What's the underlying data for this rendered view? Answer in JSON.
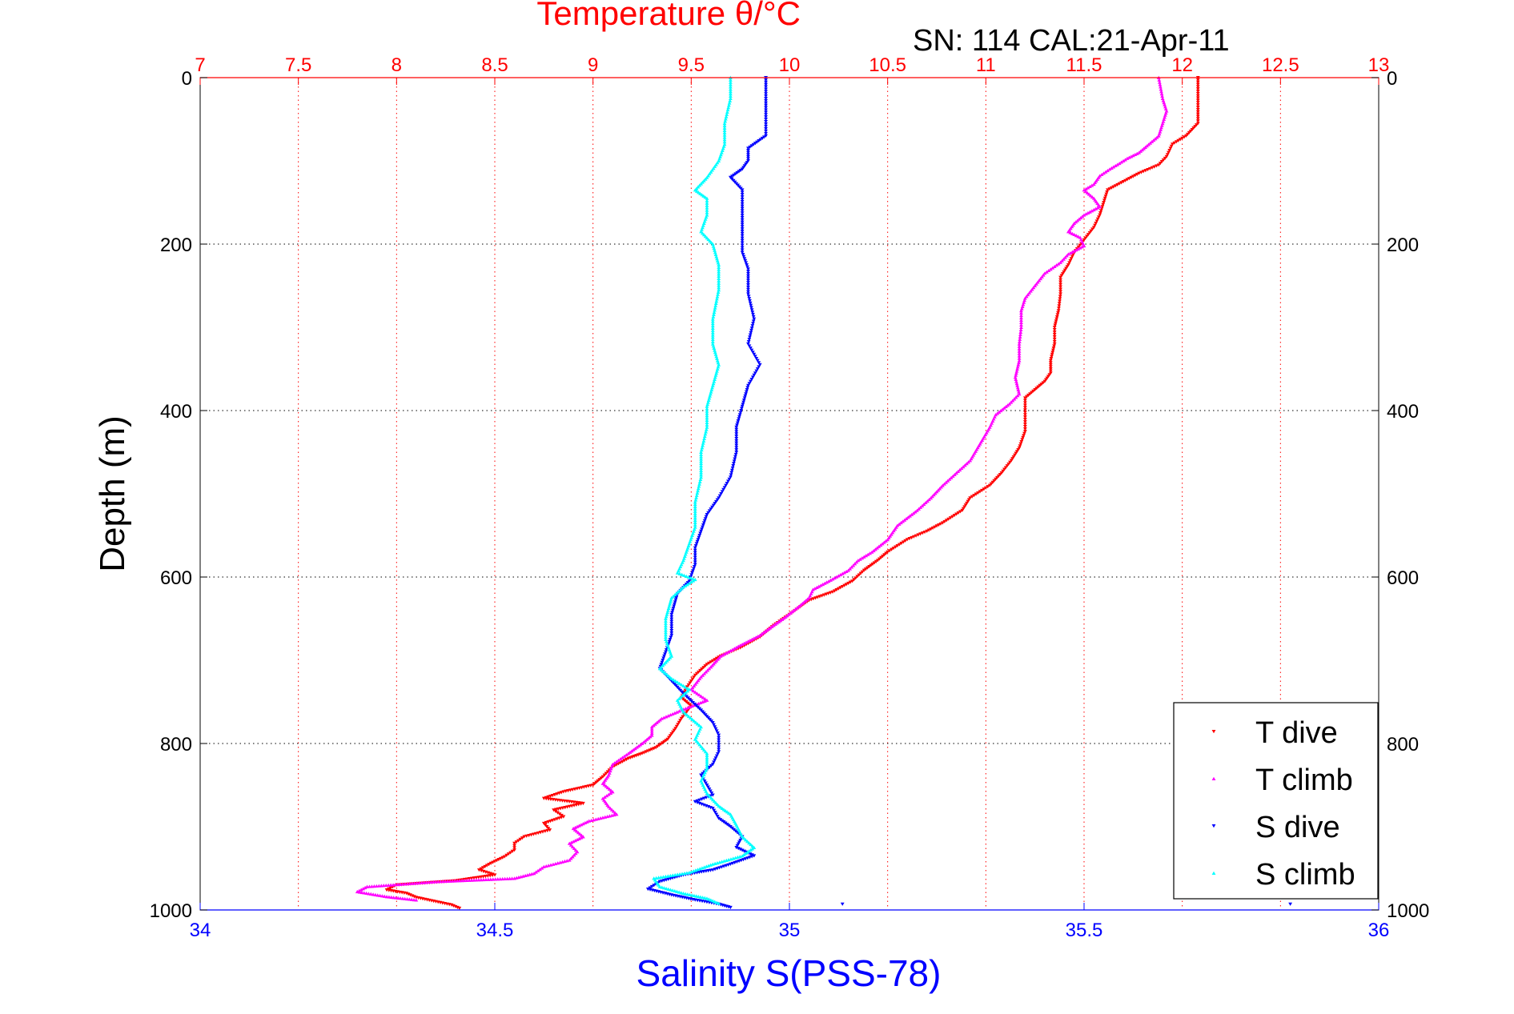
{
  "chart_data": {
    "type": "scatter",
    "title_top": "Temperature θ/°C",
    "subtitle": "SN: 114  CAL:21-Apr-11",
    "xlabel_bottom": "Salinity S(PSS-78)",
    "ylabel": "Depth (m)",
    "ylim": [
      0,
      1000
    ],
    "y_reversed": true,
    "y_ticks": [
      "0",
      "200",
      "400",
      "600",
      "800",
      "1000"
    ],
    "x_top": {
      "range": [
        7,
        13
      ],
      "ticks": [
        "7",
        "7.5",
        "8",
        "8.5",
        "9",
        "9.5",
        "10",
        "10.5",
        "11",
        "11.5",
        "12",
        "12.5",
        "13"
      ],
      "color": "#ff0000"
    },
    "x_bottom": {
      "range": [
        34,
        36
      ],
      "ticks": [
        "34",
        "34.5",
        "35",
        "35.5",
        "36"
      ],
      "color": "#0000ff"
    },
    "grid": true,
    "legend_position": "bottom-right",
    "series": [
      {
        "name": "T dive",
        "axis": "top",
        "color": "#ff0000",
        "points": [
          [
            12.08,
            0
          ],
          [
            12.08,
            30
          ],
          [
            12.08,
            55
          ],
          [
            12.02,
            70
          ],
          [
            11.95,
            80
          ],
          [
            11.92,
            95
          ],
          [
            11.88,
            105
          ],
          [
            11.78,
            115
          ],
          [
            11.7,
            125
          ],
          [
            11.62,
            135
          ],
          [
            11.6,
            150
          ],
          [
            11.58,
            165
          ],
          [
            11.55,
            180
          ],
          [
            11.5,
            195
          ],
          [
            11.45,
            210
          ],
          [
            11.42,
            225
          ],
          [
            11.38,
            240
          ],
          [
            11.38,
            260
          ],
          [
            11.37,
            280
          ],
          [
            11.35,
            300
          ],
          [
            11.35,
            320
          ],
          [
            11.33,
            340
          ],
          [
            11.33,
            355
          ],
          [
            11.3,
            365
          ],
          [
            11.25,
            375
          ],
          [
            11.2,
            385
          ],
          [
            11.2,
            405
          ],
          [
            11.2,
            425
          ],
          [
            11.17,
            445
          ],
          [
            11.13,
            460
          ],
          [
            11.08,
            475
          ],
          [
            11.02,
            490
          ],
          [
            10.92,
            505
          ],
          [
            10.88,
            520
          ],
          [
            10.78,
            535
          ],
          [
            10.7,
            545
          ],
          [
            10.6,
            555
          ],
          [
            10.5,
            570
          ],
          [
            10.45,
            580
          ],
          [
            10.38,
            592
          ],
          [
            10.32,
            605
          ],
          [
            10.22,
            618
          ],
          [
            10.1,
            628
          ],
          [
            10.0,
            645
          ],
          [
            9.92,
            658
          ],
          [
            9.85,
            672
          ],
          [
            9.75,
            685
          ],
          [
            9.65,
            695
          ],
          [
            9.58,
            705
          ],
          [
            9.52,
            718
          ],
          [
            9.48,
            732
          ],
          [
            9.45,
            745
          ],
          [
            9.5,
            755
          ],
          [
            9.45,
            770
          ],
          [
            9.42,
            782
          ],
          [
            9.38,
            795
          ],
          [
            9.32,
            805
          ],
          [
            9.25,
            812
          ],
          [
            9.18,
            818
          ],
          [
            9.1,
            828
          ],
          [
            9.05,
            840
          ],
          [
            9.0,
            850
          ],
          [
            8.85,
            858
          ],
          [
            8.75,
            866
          ],
          [
            8.95,
            872
          ],
          [
            8.8,
            880
          ],
          [
            8.85,
            888
          ],
          [
            8.75,
            896
          ],
          [
            8.78,
            904
          ],
          [
            8.65,
            912
          ],
          [
            8.6,
            920
          ],
          [
            8.6,
            928
          ],
          [
            8.55,
            936
          ],
          [
            8.48,
            944
          ],
          [
            8.42,
            952
          ],
          [
            8.5,
            958
          ],
          [
            8.3,
            965
          ],
          [
            8.0,
            970
          ],
          [
            7.95,
            976
          ],
          [
            8.05,
            980
          ],
          [
            8.1,
            985
          ],
          [
            8.2,
            990
          ],
          [
            8.28,
            994
          ],
          [
            8.32,
            998
          ]
        ]
      },
      {
        "name": "T climb",
        "axis": "top",
        "color": "#ff00ff",
        "points": [
          [
            11.88,
            0
          ],
          [
            11.9,
            25
          ],
          [
            11.92,
            40
          ],
          [
            11.9,
            55
          ],
          [
            11.88,
            70
          ],
          [
            11.82,
            82
          ],
          [
            11.78,
            90
          ],
          [
            11.72,
            97
          ],
          [
            11.68,
            103
          ],
          [
            11.63,
            110
          ],
          [
            11.58,
            118
          ],
          [
            11.55,
            128
          ],
          [
            11.5,
            135
          ],
          [
            11.55,
            145
          ],
          [
            11.58,
            155
          ],
          [
            11.5,
            165
          ],
          [
            11.45,
            175
          ],
          [
            11.42,
            185
          ],
          [
            11.48,
            192
          ],
          [
            11.5,
            202
          ],
          [
            11.42,
            212
          ],
          [
            11.38,
            222
          ],
          [
            11.3,
            235
          ],
          [
            11.25,
            250
          ],
          [
            11.2,
            265
          ],
          [
            11.18,
            280
          ],
          [
            11.18,
            300
          ],
          [
            11.17,
            320
          ],
          [
            11.17,
            340
          ],
          [
            11.15,
            360
          ],
          [
            11.17,
            380
          ],
          [
            11.12,
            392
          ],
          [
            11.05,
            405
          ],
          [
            11.02,
            420
          ],
          [
            10.97,
            440
          ],
          [
            10.92,
            460
          ],
          [
            10.85,
            475
          ],
          [
            10.78,
            490
          ],
          [
            10.72,
            505
          ],
          [
            10.65,
            520
          ],
          [
            10.55,
            538
          ],
          [
            10.5,
            555
          ],
          [
            10.42,
            570
          ],
          [
            10.35,
            580
          ],
          [
            10.3,
            592
          ],
          [
            10.2,
            605
          ],
          [
            10.12,
            615
          ],
          [
            10.1,
            625
          ],
          [
            10.05,
            635
          ],
          [
            9.98,
            648
          ],
          [
            9.92,
            658
          ],
          [
            9.85,
            670
          ],
          [
            9.75,
            682
          ],
          [
            9.65,
            695
          ],
          [
            9.6,
            708
          ],
          [
            9.55,
            720
          ],
          [
            9.5,
            735
          ],
          [
            9.58,
            748
          ],
          [
            9.45,
            760
          ],
          [
            9.35,
            770
          ],
          [
            9.3,
            780
          ],
          [
            9.3,
            790
          ],
          [
            9.25,
            800
          ],
          [
            9.18,
            812
          ],
          [
            9.1,
            825
          ],
          [
            9.08,
            838
          ],
          [
            9.05,
            848
          ],
          [
            9.1,
            858
          ],
          [
            9.05,
            866
          ],
          [
            9.08,
            876
          ],
          [
            9.12,
            885
          ],
          [
            8.98,
            893
          ],
          [
            8.9,
            902
          ],
          [
            8.95,
            912
          ],
          [
            8.88,
            920
          ],
          [
            8.92,
            930
          ],
          [
            8.88,
            940
          ],
          [
            8.75,
            948
          ],
          [
            8.7,
            956
          ],
          [
            8.6,
            962
          ],
          [
            8.2,
            966
          ],
          [
            7.85,
            972
          ],
          [
            7.8,
            978
          ],
          [
            7.95,
            984
          ],
          [
            8.1,
            988
          ]
        ]
      },
      {
        "name": "S dive",
        "axis": "bottom",
        "color": "#0000ff",
        "points": [
          [
            34.96,
            0
          ],
          [
            34.96,
            25
          ],
          [
            34.96,
            50
          ],
          [
            34.96,
            70
          ],
          [
            34.93,
            85
          ],
          [
            34.93,
            100
          ],
          [
            34.92,
            110
          ],
          [
            34.9,
            120
          ],
          [
            34.92,
            135
          ],
          [
            34.92,
            160
          ],
          [
            34.92,
            190
          ],
          [
            34.92,
            210
          ],
          [
            34.93,
            230
          ],
          [
            34.93,
            260
          ],
          [
            34.94,
            290
          ],
          [
            34.93,
            320
          ],
          [
            34.95,
            345
          ],
          [
            34.93,
            370
          ],
          [
            34.92,
            395
          ],
          [
            34.91,
            420
          ],
          [
            34.91,
            450
          ],
          [
            34.9,
            480
          ],
          [
            34.88,
            505
          ],
          [
            34.86,
            525
          ],
          [
            34.85,
            545
          ],
          [
            34.84,
            565
          ],
          [
            34.84,
            585
          ],
          [
            34.83,
            605
          ],
          [
            34.81,
            620
          ],
          [
            34.8,
            645
          ],
          [
            34.8,
            670
          ],
          [
            34.79,
            690
          ],
          [
            34.78,
            710
          ],
          [
            34.8,
            725
          ],
          [
            34.82,
            740
          ],
          [
            34.85,
            760
          ],
          [
            34.87,
            775
          ],
          [
            34.88,
            790
          ],
          [
            34.88,
            810
          ],
          [
            34.87,
            825
          ],
          [
            34.85,
            838
          ],
          [
            34.86,
            850
          ],
          [
            34.87,
            862
          ],
          [
            34.84,
            870
          ],
          [
            34.87,
            878
          ],
          [
            34.88,
            890
          ],
          [
            34.9,
            900
          ],
          [
            34.92,
            912
          ],
          [
            34.91,
            925
          ],
          [
            34.94,
            935
          ],
          [
            34.9,
            945
          ],
          [
            34.87,
            952
          ],
          [
            34.82,
            958
          ],
          [
            34.78,
            966
          ],
          [
            34.76,
            975
          ],
          [
            34.8,
            982
          ],
          [
            34.84,
            988
          ],
          [
            34.88,
            993
          ],
          [
            34.9,
            997
          ]
        ]
      },
      {
        "name": "S climb",
        "axis": "bottom",
        "color": "#00ffff",
        "points": [
          [
            34.9,
            0
          ],
          [
            34.9,
            25
          ],
          [
            34.89,
            55
          ],
          [
            34.89,
            80
          ],
          [
            34.88,
            100
          ],
          [
            34.86,
            120
          ],
          [
            34.84,
            135
          ],
          [
            34.86,
            145
          ],
          [
            34.86,
            165
          ],
          [
            34.85,
            185
          ],
          [
            34.87,
            200
          ],
          [
            34.88,
            225
          ],
          [
            34.88,
            255
          ],
          [
            34.87,
            290
          ],
          [
            34.87,
            320
          ],
          [
            34.88,
            345
          ],
          [
            34.87,
            370
          ],
          [
            34.86,
            395
          ],
          [
            34.86,
            420
          ],
          [
            34.85,
            450
          ],
          [
            34.85,
            480
          ],
          [
            34.84,
            510
          ],
          [
            34.84,
            540
          ],
          [
            34.83,
            560
          ],
          [
            34.82,
            580
          ],
          [
            34.81,
            595
          ],
          [
            34.84,
            603
          ],
          [
            34.82,
            612
          ],
          [
            34.8,
            625
          ],
          [
            34.79,
            650
          ],
          [
            34.79,
            675
          ],
          [
            34.8,
            695
          ],
          [
            34.78,
            710
          ],
          [
            34.8,
            722
          ],
          [
            34.83,
            735
          ],
          [
            34.81,
            748
          ],
          [
            34.82,
            762
          ],
          [
            34.85,
            780
          ],
          [
            34.84,
            795
          ],
          [
            34.86,
            812
          ],
          [
            34.86,
            830
          ],
          [
            34.85,
            845
          ],
          [
            34.86,
            860
          ],
          [
            34.88,
            875
          ],
          [
            34.9,
            885
          ],
          [
            34.91,
            898
          ],
          [
            34.92,
            912
          ],
          [
            34.94,
            925
          ],
          [
            34.92,
            935
          ],
          [
            34.87,
            945
          ],
          [
            34.83,
            955
          ],
          [
            34.77,
            962
          ],
          [
            34.78,
            972
          ],
          [
            34.82,
            980
          ],
          [
            34.86,
            986
          ],
          [
            34.88,
            992
          ]
        ]
      }
    ],
    "outlier_points": [
      {
        "series": "S dive",
        "x": 35.09,
        "y": 993
      },
      {
        "series": "S dive",
        "x": 35.85,
        "y": 993
      }
    ]
  },
  "legend": {
    "items": [
      {
        "label": "T dive",
        "color": "#ff0000"
      },
      {
        "label": "T climb",
        "color": "#ff00ff"
      },
      {
        "label": "S dive",
        "color": "#0000ff"
      },
      {
        "label": "S climb",
        "color": "#00ffff"
      }
    ]
  }
}
